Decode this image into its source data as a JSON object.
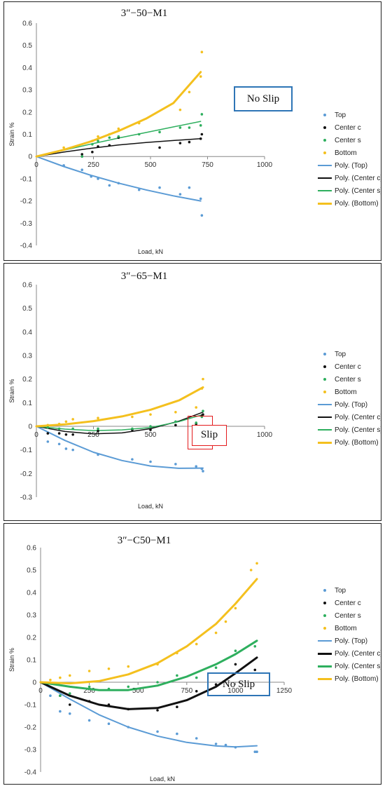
{
  "colors": {
    "top": "#5B9BD5",
    "center_c": "#111111",
    "center_s": "#2EAF5E",
    "bottom": "#F4C01E",
    "annotation_blue": "#2E75B6",
    "annotation_red": "#E31A1C"
  },
  "chart_data": [
    {
      "type": "scatter",
      "title": "3″−50−M1",
      "xlabel": "Load, kN",
      "ylabel": "Strain %",
      "xlim": [
        0,
        1000
      ],
      "ylim": [
        -0.4,
        0.6
      ],
      "xticks": [
        "0",
        "250",
        "500",
        "750",
        "1000"
      ],
      "yticks": [
        "-0.4",
        "-0.3",
        "-0.2",
        "-0.1",
        "0",
        "0.1",
        "0.2",
        "0.3",
        "0.4",
        "0.5",
        "0.6"
      ],
      "legend_position": "right",
      "annotation": {
        "text": "No Slip"
      },
      "series": [
        {
          "name": "Top",
          "color": "#5B9BD5",
          "kind": "points",
          "x": [
            120,
            200,
            240,
            270,
            320,
            360,
            450,
            540,
            630,
            670,
            720,
            725
          ],
          "y": [
            -0.04,
            -0.06,
            -0.09,
            -0.1,
            -0.13,
            -0.12,
            -0.15,
            -0.14,
            -0.17,
            -0.14,
            -0.19,
            -0.265
          ]
        },
        {
          "name": "Center c",
          "color": "#111111",
          "kind": "points",
          "x": [
            200,
            245,
            270,
            320,
            360,
            540,
            630,
            670,
            720,
            725
          ],
          "y": [
            0.01,
            0.02,
            0.045,
            0.05,
            0.085,
            0.04,
            0.06,
            0.065,
            0.08,
            0.1
          ]
        },
        {
          "name": "Center s",
          "color": "#2EAF5E",
          "kind": "points",
          "x": [
            200,
            245,
            270,
            320,
            360,
            450,
            540,
            630,
            670,
            720,
            725
          ],
          "y": [
            0.0,
            0.055,
            0.07,
            0.085,
            0.09,
            0.1,
            0.11,
            0.13,
            0.13,
            0.14,
            0.19
          ]
        },
        {
          "name": "Bottom",
          "color": "#F4C01E",
          "kind": "points",
          "x": [
            120,
            245,
            270,
            320,
            360,
            450,
            630,
            670,
            720,
            725
          ],
          "y": [
            0.04,
            0.07,
            0.09,
            0.1,
            0.125,
            0.15,
            0.21,
            0.29,
            0.36,
            0.47
          ]
        },
        {
          "name": "Poly. (Top)",
          "color": "#5B9BD5",
          "kind": "line",
          "width": 2,
          "x": [
            0,
            120,
            240,
            360,
            480,
            600,
            720
          ],
          "y": [
            0,
            -0.045,
            -0.085,
            -0.12,
            -0.15,
            -0.177,
            -0.2
          ]
        },
        {
          "name": "Poly. (Center c)",
          "color": "#111111",
          "kind": "line",
          "width": 1.5,
          "x": [
            0,
            120,
            240,
            360,
            480,
            600,
            720
          ],
          "y": [
            0,
            0.02,
            0.037,
            0.052,
            0.063,
            0.072,
            0.08
          ]
        },
        {
          "name": "Poly. (Center s)",
          "color": "#2EAF5E",
          "kind": "line",
          "width": 1.5,
          "x": [
            0,
            120,
            240,
            360,
            480,
            600,
            720
          ],
          "y": [
            0,
            0.028,
            0.056,
            0.083,
            0.108,
            0.133,
            0.158
          ]
        },
        {
          "name": "Poly. (Bottom)",
          "color": "#F4C01E",
          "kind": "line",
          "width": 3,
          "x": [
            0,
            120,
            240,
            360,
            480,
            600,
            720
          ],
          "y": [
            0,
            0.03,
            0.068,
            0.115,
            0.17,
            0.24,
            0.38
          ]
        }
      ]
    },
    {
      "type": "scatter",
      "title": "3″−65−M1",
      "xlabel": "Load, kN",
      "ylabel": "Strain %",
      "xlim": [
        0,
        1000
      ],
      "ylim": [
        -0.3,
        0.6
      ],
      "xticks": [
        "0",
        "250",
        "500",
        "750",
        "1000"
      ],
      "yticks": [
        "-0.3",
        "-0.2",
        "-0.1",
        "0",
        "0.1",
        "0.2",
        "0.3",
        "0.4",
        "0.5",
        "0.6"
      ],
      "legend_position": "right",
      "annotation": {
        "text": "Slip"
      },
      "series": [
        {
          "name": "Top",
          "color": "#5B9BD5",
          "kind": "points",
          "x": [
            50,
            100,
            130,
            160,
            270,
            420,
            500,
            610,
            700,
            725,
            730
          ],
          "y": [
            -0.065,
            -0.075,
            -0.095,
            -0.1,
            -0.12,
            -0.14,
            -0.15,
            -0.16,
            -0.17,
            -0.18,
            -0.19
          ]
        },
        {
          "name": "Center c",
          "color": "#111111",
          "kind": "points",
          "x": [
            50,
            100,
            130,
            160,
            270,
            420,
            500,
            610,
            700,
            725,
            730
          ],
          "y": [
            -0.03,
            -0.03,
            -0.035,
            -0.035,
            -0.02,
            -0.015,
            -0.015,
            0.005,
            0.01,
            0.045,
            0.05
          ]
        },
        {
          "name": "Center s",
          "color": "#2EAF5E",
          "kind": "points",
          "x": [
            50,
            100,
            160,
            270,
            420,
            500,
            610,
            700,
            725,
            730
          ],
          "y": [
            -0.005,
            -0.01,
            -0.01,
            -0.01,
            -0.01,
            0.0,
            0.02,
            0.015,
            0.04,
            0.065
          ]
        },
        {
          "name": "Bottom",
          "color": "#F4C01E",
          "kind": "points",
          "x": [
            50,
            100,
            130,
            160,
            270,
            420,
            500,
            610,
            700,
            725,
            730
          ],
          "y": [
            0.005,
            0.01,
            0.02,
            0.03,
            0.035,
            0.04,
            0.05,
            0.06,
            0.08,
            0.16,
            0.2
          ]
        },
        {
          "name": "Poly. (Top)",
          "color": "#5B9BD5",
          "kind": "line",
          "width": 2,
          "x": [
            0,
            125,
            250,
            375,
            500,
            625,
            730
          ],
          "y": [
            0,
            -0.06,
            -0.11,
            -0.145,
            -0.168,
            -0.178,
            -0.177
          ]
        },
        {
          "name": "Poly. (Center c)",
          "color": "#111111",
          "kind": "line",
          "width": 1.5,
          "x": [
            0,
            125,
            250,
            375,
            500,
            625,
            730
          ],
          "y": [
            0,
            -0.022,
            -0.032,
            -0.028,
            -0.01,
            0.022,
            0.06
          ]
        },
        {
          "name": "Poly. (Center s)",
          "color": "#2EAF5E",
          "kind": "line",
          "width": 1.5,
          "x": [
            0,
            125,
            250,
            375,
            500,
            625,
            730
          ],
          "y": [
            0,
            -0.012,
            -0.018,
            -0.015,
            -0.005,
            0.02,
            0.05
          ]
        },
        {
          "name": "Poly. (Bottom)",
          "color": "#F4C01E",
          "kind": "line",
          "width": 3,
          "x": [
            0,
            125,
            250,
            375,
            500,
            625,
            730
          ],
          "y": [
            0,
            0.008,
            0.022,
            0.042,
            0.07,
            0.11,
            0.165
          ]
        }
      ]
    },
    {
      "type": "scatter",
      "title": "3″−C50−M1",
      "xlabel": "Load, kN",
      "ylabel": "Strain %",
      "xlim": [
        0,
        1250
      ],
      "ylim": [
        -0.4,
        0.6
      ],
      "xticks": [
        "0",
        "250",
        "500",
        "750",
        "1000",
        "1250"
      ],
      "yticks": [
        "-0.4",
        "-0.3",
        "-0.2",
        "-0.1",
        "0",
        "0.1",
        "0.2",
        "0.3",
        "0.4",
        "0.5",
        "0.6"
      ],
      "legend_position": "right",
      "annotation": {
        "text": "No Slip"
      },
      "series": [
        {
          "name": "Top",
          "color": "#5B9BD5",
          "kind": "points",
          "x": [
            50,
            100,
            150,
            250,
            350,
            450,
            600,
            700,
            800,
            900,
            950,
            1000,
            1100,
            1110
          ],
          "y": [
            -0.06,
            -0.13,
            -0.14,
            -0.17,
            -0.185,
            -0.2,
            -0.22,
            -0.23,
            -0.25,
            -0.275,
            -0.28,
            -0.29,
            -0.31,
            -0.31
          ]
        },
        {
          "name": "Center c",
          "color": "#111111",
          "kind": "points",
          "x": [
            100,
            150,
            250,
            350,
            450,
            600,
            700,
            800,
            900,
            1000,
            1100
          ],
          "y": [
            -0.06,
            -0.1,
            -0.085,
            -0.1,
            -0.12,
            -0.125,
            -0.11,
            -0.04,
            -0.01,
            0.08,
            0.055
          ]
        },
        {
          "name": "Center s",
          "color": "#2EAF5E",
          "kind": "points",
          "x": [
            100,
            150,
            250,
            350,
            450,
            600,
            700,
            800,
            900,
            1000,
            1100
          ],
          "y": [
            -0.06,
            -0.05,
            -0.02,
            -0.03,
            -0.02,
            0.0,
            0.03,
            0.02,
            0.065,
            0.14,
            0.16
          ]
        },
        {
          "name": "Bottom",
          "color": "#F4C01E",
          "kind": "points",
          "x": [
            50,
            100,
            150,
            250,
            350,
            450,
            600,
            700,
            800,
            900,
            950,
            1000,
            1080,
            1110
          ],
          "y": [
            0.01,
            0.02,
            0.03,
            0.05,
            0.06,
            0.07,
            0.08,
            0.13,
            0.17,
            0.22,
            0.27,
            0.33,
            0.5,
            0.53
          ]
        },
        {
          "name": "Poly. (Top)",
          "color": "#5B9BD5",
          "kind": "line",
          "width": 2,
          "x": [
            0,
            150,
            300,
            450,
            600,
            750,
            900,
            1000,
            1110
          ],
          "y": [
            0,
            -0.075,
            -0.145,
            -0.2,
            -0.24,
            -0.268,
            -0.284,
            -0.288,
            -0.283
          ]
        },
        {
          "name": "Poly. (Center c)",
          "color": "#111111",
          "kind": "line",
          "width": 3,
          "x": [
            0,
            150,
            300,
            450,
            600,
            750,
            900,
            1000,
            1110
          ],
          "y": [
            0,
            -0.06,
            -0.1,
            -0.12,
            -0.115,
            -0.08,
            -0.02,
            0.04,
            0.11
          ]
        },
        {
          "name": "Poly. (Center s)",
          "color": "#2EAF5E",
          "kind": "line",
          "width": 3,
          "x": [
            0,
            150,
            300,
            450,
            600,
            750,
            900,
            1000,
            1110
          ],
          "y": [
            0,
            -0.02,
            -0.035,
            -0.035,
            -0.015,
            0.025,
            0.08,
            0.125,
            0.185
          ]
        },
        {
          "name": "Poly. (Bottom)",
          "color": "#F4C01E",
          "kind": "line",
          "width": 3,
          "x": [
            0,
            150,
            300,
            450,
            600,
            750,
            900,
            1000,
            1110
          ],
          "y": [
            0,
            -0.005,
            0.005,
            0.035,
            0.085,
            0.16,
            0.26,
            0.35,
            0.46
          ]
        }
      ]
    }
  ]
}
